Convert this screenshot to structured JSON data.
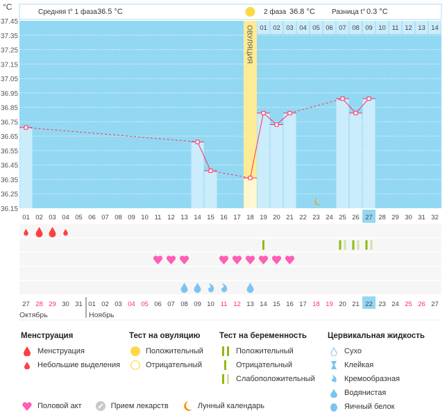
{
  "header": {
    "unit": "°C",
    "phase1_label": "Средняя t° 1 фаза",
    "phase1_value": "36.5 °C",
    "phase2_label": "2 фаза",
    "phase2_value": "36.8 °C",
    "diff_label": "Разница t°",
    "diff_value": "0.3 °C",
    "ovulation_label": "ОВУЛЯЦИЯ"
  },
  "chart_data": {
    "type": "line",
    "ylim": [
      36.15,
      37.45
    ],
    "yticks": [
      "37.45",
      "37.35",
      "37.25",
      "37.15",
      "37.05",
      "36.95",
      "36.85",
      "36.75",
      "36.65",
      "36.55",
      "36.45",
      "36.35",
      "36.25",
      "36.15"
    ],
    "cycle_days": [
      "01",
      "02",
      "03",
      "04",
      "05",
      "06",
      "07",
      "08",
      "09",
      "10",
      "11",
      "12",
      "13",
      "14",
      "15",
      "16",
      "17",
      "18",
      "19",
      "20",
      "21",
      "22",
      "23",
      "24",
      "25",
      "26",
      "27",
      "28",
      "29",
      "30",
      "31",
      "32"
    ],
    "current_cycle_day": 27,
    "ovulation_day": 18,
    "phase2_days": [
      "01",
      "02",
      "03",
      "04",
      "05",
      "06",
      "07",
      "08",
      "09",
      "10",
      "11",
      "12",
      "13",
      "14"
    ],
    "temperatures": [
      {
        "day": 1,
        "t": 36.71
      },
      {
        "day": 14,
        "t": 36.61
      },
      {
        "day": 15,
        "t": 36.41
      },
      {
        "day": 18,
        "t": 36.36
      },
      {
        "day": 19,
        "t": 36.81
      },
      {
        "day": 20,
        "t": 36.73
      },
      {
        "day": 21,
        "t": 36.81
      },
      {
        "day": 25,
        "t": 36.91
      },
      {
        "day": 26,
        "t": 36.81
      },
      {
        "day": 27,
        "t": 36.91
      }
    ],
    "moon_day": 23,
    "menstruation": [
      {
        "day": 1,
        "type": "small"
      },
      {
        "day": 2,
        "type": "full"
      },
      {
        "day": 3,
        "type": "full"
      },
      {
        "day": 4,
        "type": "small"
      }
    ],
    "pregnancy_tests": [
      {
        "day": 19,
        "type": "negative"
      },
      {
        "day": 25,
        "type": "weak"
      },
      {
        "day": 26,
        "type": "weak"
      },
      {
        "day": 27,
        "type": "weak"
      }
    ],
    "intercourse_days": [
      11,
      12,
      13,
      16,
      17,
      18,
      19,
      20,
      21
    ],
    "cervical_fluid": [
      {
        "day": 13,
        "type": "watery"
      },
      {
        "day": 14,
        "type": "watery"
      },
      {
        "day": 15,
        "type": "creamy"
      },
      {
        "day": 16,
        "type": "creamy"
      },
      {
        "day": 18,
        "type": "watery"
      }
    ],
    "dates": [
      "27",
      "28",
      "29",
      "30",
      "31",
      "01",
      "02",
      "03",
      "04",
      "05",
      "06",
      "07",
      "08",
      "09",
      "10",
      "11",
      "12",
      "13",
      "14",
      "15",
      "16",
      "17",
      "18",
      "19",
      "20",
      "21",
      "22",
      "23",
      "24",
      "25",
      "26",
      "27"
    ],
    "weekend_dates": [
      1,
      2,
      8,
      9,
      15,
      16,
      22,
      23,
      29,
      30
    ],
    "today_index": 26,
    "months": [
      "Октябрь",
      "Ноябрь"
    ]
  },
  "colors": {
    "plot": "#93d8f3",
    "bar": "#cbecfb",
    "ovulation": "#fdec95",
    "line": "#ff2d63",
    "blood": "#ff4040",
    "heart": "#ff5fb4",
    "test": "#8dbb0f",
    "test_light": "#cfe3a6",
    "fluid": "#7cc4ee",
    "moon": "#f29612",
    "weekend": "#ff2d63"
  },
  "legend": {
    "menstruation": {
      "title": "Менструация",
      "items": [
        "Менструация",
        "Небольшие выделения"
      ]
    },
    "ovulation_test": {
      "title": "Тест на овуляцию",
      "items": [
        "Положительный",
        "Отрицательный"
      ]
    },
    "pregnancy_test": {
      "title": "Тест на беременность",
      "items": [
        "Положительный",
        "Отрицательный",
        "Слабоположительный"
      ]
    },
    "fluid": {
      "title": "Цервикальная жидкость",
      "items": [
        "Сухо",
        "Клейкая",
        "Кремообразная",
        "Водянистая",
        "Яичный белок"
      ]
    },
    "bottom": [
      "Половой акт",
      "Прием лекарств",
      "Лунный календарь"
    ]
  }
}
